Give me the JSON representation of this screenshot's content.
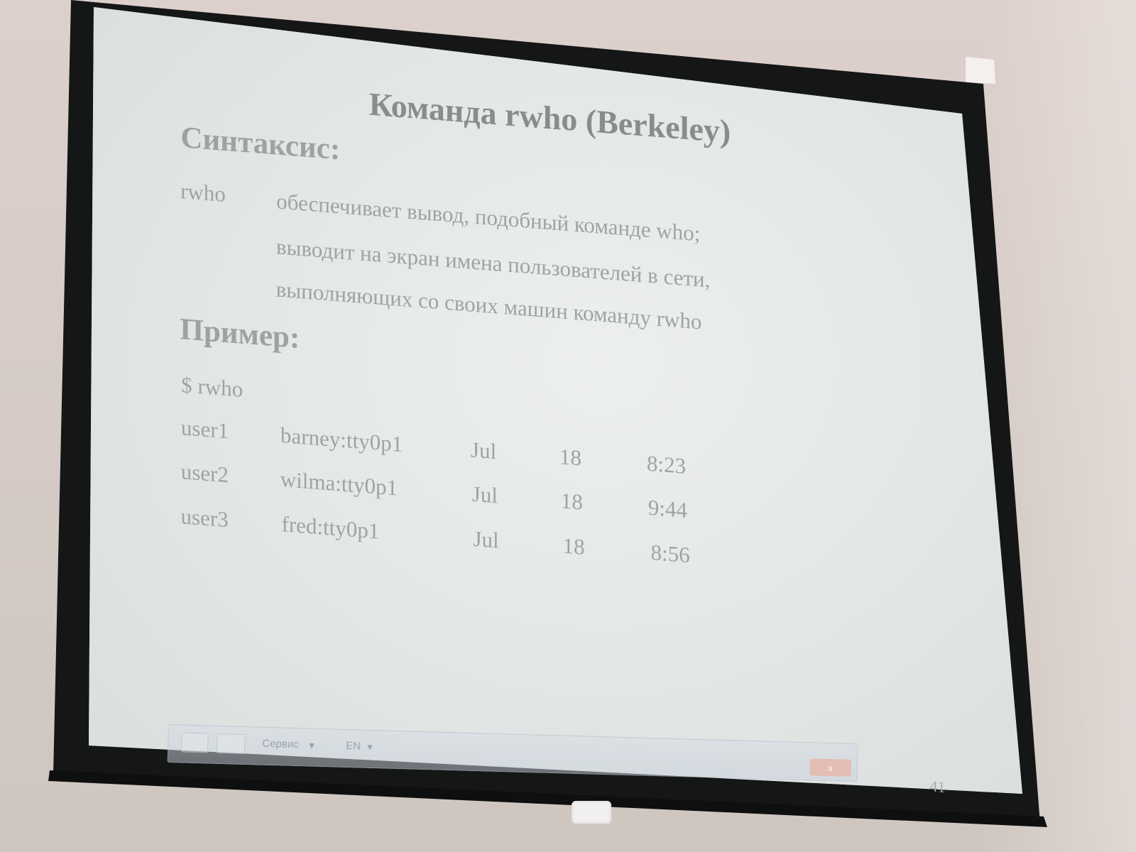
{
  "slide": {
    "title": "Команда rwho (Berkeley)",
    "syntax_heading": "Синтаксис:",
    "command": "rwho",
    "description": [
      "обеспечивает вывод, подобный команде who;",
      "выводит на экран имена пользователей в сети,",
      "выполняющих со своих машин команду rwho"
    ],
    "example_heading": "Пример:",
    "prompt": "$ rwho",
    "rows": [
      {
        "user": "user1",
        "host": "barney:tty0p1",
        "month": "Jul",
        "day": "18",
        "time": "8:23"
      },
      {
        "user": "user2",
        "host": "wilma:tty0p1",
        "month": "Jul",
        "day": "18",
        "time": "9:44"
      },
      {
        "user": "user3",
        "host": "fred:tty0p1",
        "month": "Jul",
        "day": "18",
        "time": "8:56"
      }
    ],
    "page_number": "41"
  },
  "taskbar": {
    "service_label": "Сервис",
    "lang_label": "EN",
    "close_label": "x"
  },
  "colors": {
    "slide_background": "#e4e8e7",
    "frame": "#141515",
    "text": "#9fa3a2",
    "title_text": "#8a8c8c"
  }
}
